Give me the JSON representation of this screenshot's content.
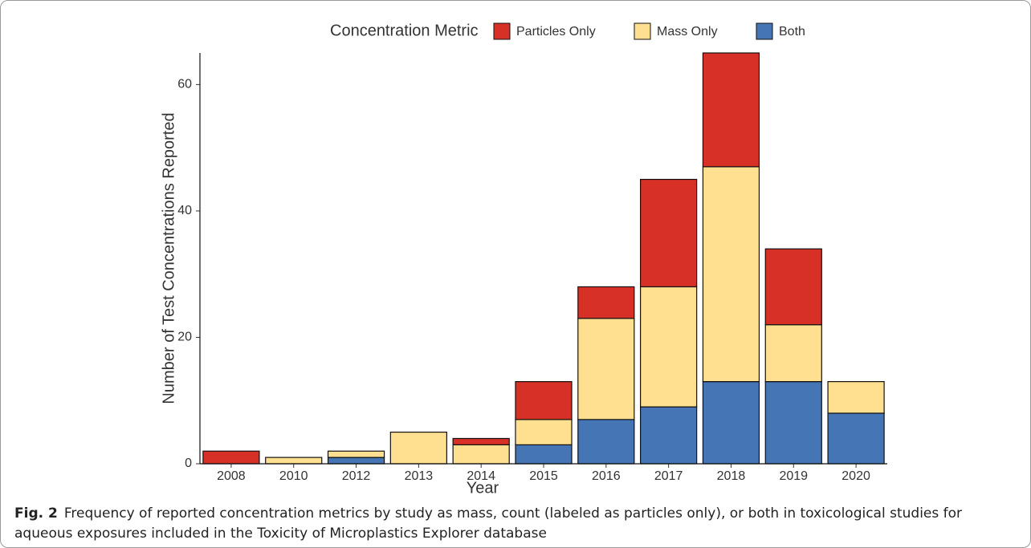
{
  "chart_data": {
    "type": "stacked_bar",
    "legend_title": "Concentration Metric",
    "x_label": "Year",
    "y_label": "Number of Test Concentrations Reported",
    "categories": [
      "2008",
      "2010",
      "2012",
      "2013",
      "2014",
      "2015",
      "2016",
      "2017",
      "2018",
      "2019",
      "2020"
    ],
    "series": [
      {
        "name": "Both",
        "color": "#4575b4",
        "values": [
          0,
          0,
          1,
          0,
          0,
          3,
          7,
          9,
          13,
          13,
          8
        ]
      },
      {
        "name": "Mass Only",
        "color": "#fee090",
        "values": [
          0,
          1,
          1,
          5,
          3,
          4,
          16,
          19,
          34,
          9,
          5
        ]
      },
      {
        "name": "Particles Only",
        "color": "#d73027",
        "values": [
          2,
          0,
          0,
          0,
          1,
          6,
          5,
          17,
          18,
          12,
          0
        ]
      }
    ],
    "legend_order": [
      2,
      1,
      0
    ],
    "ylim": [
      0,
      65
    ],
    "yticks": [
      0,
      20,
      40,
      60
    ],
    "grid": false
  },
  "caption": {
    "label": "Fig. 2",
    "text": "Frequency of reported concentration metrics by study as mass, count (labeled as particles only), or both in toxicological studies for aqueous exposures included in the Toxicity of Microplastics Explorer database"
  }
}
